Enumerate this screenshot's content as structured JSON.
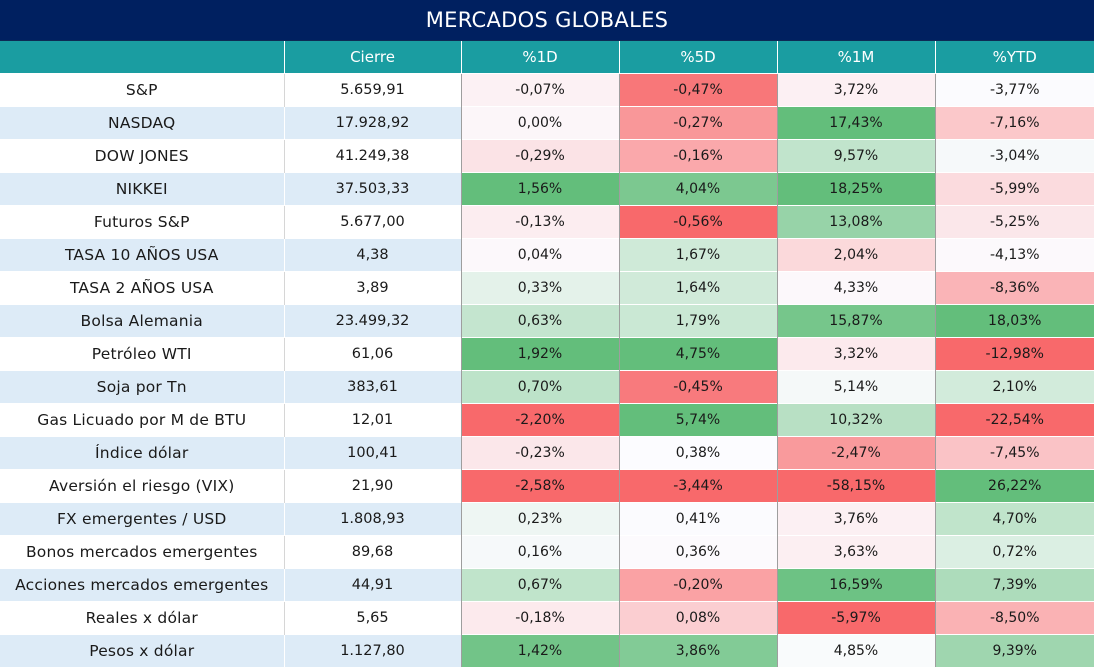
{
  "title": "MERCADOS GLOBALES",
  "headers": [
    "",
    "Cierre",
    "%1D",
    "%5D",
    "%1M",
    "%YTD"
  ],
  "rows": [
    {
      "name": "S&P",
      "close": "5.659,91",
      "d1": "-0,07%",
      "d5": "-0,47%",
      "m1": "3,72%",
      "ytd": "-3,77%"
    },
    {
      "name": "NASDAQ",
      "close": "17.928,92",
      "d1": "0,00%",
      "d5": "-0,27%",
      "m1": "17,43%",
      "ytd": "-7,16%"
    },
    {
      "name": "DOW JONES",
      "close": "41.249,38",
      "d1": "-0,29%",
      "d5": "-0,16%",
      "m1": "9,57%",
      "ytd": "-3,04%"
    },
    {
      "name": "NIKKEI",
      "close": "37.503,33",
      "d1": "1,56%",
      "d5": "4,04%",
      "m1": "18,25%",
      "ytd": "-5,99%"
    },
    {
      "name": "Futuros S&P",
      "close": "5.677,00",
      "d1": "-0,13%",
      "d5": "-0,56%",
      "m1": "13,08%",
      "ytd": "-5,25%"
    },
    {
      "name": "TASA 10 AÑOS USA",
      "close": "4,38",
      "d1": "0,04%",
      "d5": "1,67%",
      "m1": "2,04%",
      "ytd": "-4,13%"
    },
    {
      "name": "TASA 2 AÑOS USA",
      "close": "3,89",
      "d1": "0,33%",
      "d5": "1,64%",
      "m1": "4,33%",
      "ytd": "-8,36%"
    },
    {
      "name": "Bolsa Alemania",
      "close": "23.499,32",
      "d1": "0,63%",
      "d5": "1,79%",
      "m1": "15,87%",
      "ytd": "18,03%"
    },
    {
      "name": "Petróleo WTI",
      "close": "61,06",
      "d1": "1,92%",
      "d5": "4,75%",
      "m1": "3,32%",
      "ytd": "-12,98%"
    },
    {
      "name": "Soja por Tn",
      "close": "383,61",
      "d1": "0,70%",
      "d5": "-0,45%",
      "m1": "5,14%",
      "ytd": "2,10%"
    },
    {
      "name": "Gas Licuado por M de BTU",
      "close": "12,01",
      "d1": "-2,20%",
      "d5": "5,74%",
      "m1": "10,32%",
      "ytd": "-22,54%"
    },
    {
      "name": "Índice dólar",
      "close": "100,41",
      "d1": "-0,23%",
      "d5": "0,38%",
      "m1": "-2,47%",
      "ytd": "-7,45%"
    },
    {
      "name": "Aversión el riesgo (VIX)",
      "close": "21,90",
      "d1": "-2,58%",
      "d5": "-3,44%",
      "m1": "-58,15%",
      "ytd": "26,22%"
    },
    {
      "name": "FX emergentes / USD",
      "close": "1.808,93",
      "d1": "0,23%",
      "d5": "0,41%",
      "m1": "3,76%",
      "ytd": "4,70%"
    },
    {
      "name": "Bonos mercados emergentes",
      "close": "89,68",
      "d1": "0,16%",
      "d5": "0,36%",
      "m1": "3,63%",
      "ytd": "0,72%"
    },
    {
      "name": "Acciones mercados emergentes",
      "close": "44,91",
      "d1": "0,67%",
      "d5": "-0,20%",
      "m1": "16,59%",
      "ytd": "7,39%"
    },
    {
      "name": "Reales x dólar",
      "close": "5,65",
      "d1": "-0,18%",
      "d5": "0,08%",
      "m1": "-5,97%",
      "ytd": "-8,50%"
    },
    {
      "name": "Pesos x dólar",
      "close": "1.127,80",
      "d1": "1,42%",
      "d5": "3,86%",
      "m1": "4,85%",
      "ytd": "9,39%"
    }
  ],
  "colors": {
    "title_bg": "#002060",
    "header_bg": "#1a9da1",
    "row_stripe": "#ddebf7",
    "positive": "#63be7b",
    "negative": "#f8696b",
    "neutral": "#fcfcff"
  }
}
